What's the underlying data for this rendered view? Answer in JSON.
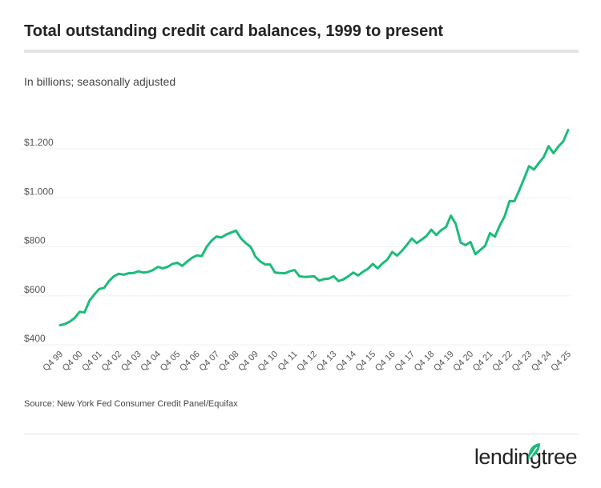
{
  "title": "Total outstanding credit card balances, 1999 to present",
  "subtitle": "In billions; seasonally adjusted",
  "source": "Source: New York Fed Consumer Credit Panel/Equifax",
  "logo": "lendingtree",
  "colors": {
    "line": "#1dbb7a",
    "grid": "#f0f0f0",
    "logo_leaf": "#1dbb7a"
  },
  "chart_data": {
    "type": "line",
    "title": "Total outstanding credit card balances, 1999 to present",
    "subtitle": "In billions; seasonally adjusted",
    "ylim": [
      400,
      1200
    ],
    "yticks": [
      400,
      600,
      800,
      1000,
      1200
    ],
    "ytick_labels": [
      "$400",
      "$600",
      "$800",
      "$1.000",
      "$1.200"
    ],
    "grid": "horizontal",
    "xtick_labels": [
      "Q4 99",
      "Q4 00",
      "Q4 01",
      "Q4 02",
      "Q4 03",
      "Q4 04",
      "Q4 05",
      "Q4 06",
      "Q4 07",
      "Q4 08",
      "Q4 09",
      "Q4 10",
      "Q4 11",
      "Q4 12",
      "Q4 13",
      "Q4 14",
      "Q4 15",
      "Q4 16",
      "Q4 17",
      "Q4 18",
      "Q4 19",
      "Q4 20",
      "Q4 21",
      "Q4 22",
      "Q4 23",
      "Q4 24",
      "Q4 25"
    ],
    "x_start": "Q4 1999",
    "x_end": "Q4 2025",
    "frequency": "quarterly",
    "values": [
      480,
      485,
      495,
      510,
      535,
      532,
      580,
      605,
      628,
      632,
      660,
      680,
      690,
      686,
      692,
      693,
      700,
      695,
      697,
      705,
      718,
      712,
      718,
      730,
      735,
      722,
      740,
      755,
      765,
      762,
      800,
      825,
      842,
      838,
      850,
      858,
      866,
      835,
      815,
      800,
      760,
      740,
      728,
      728,
      695,
      693,
      692,
      700,
      705,
      680,
      677,
      678,
      680,
      662,
      668,
      670,
      680,
      660,
      667,
      680,
      695,
      683,
      698,
      710,
      730,
      712,
      732,
      748,
      779,
      764,
      784,
      808,
      834,
      815,
      829,
      844,
      870,
      848,
      868,
      881,
      927,
      893,
      817,
      807,
      820,
      770,
      787,
      804,
      856,
      841,
      887,
      925,
      986,
      986,
      1031,
      1079,
      1129,
      1115,
      1142,
      1166,
      1211,
      1182,
      1209,
      1230,
      1277
    ]
  }
}
